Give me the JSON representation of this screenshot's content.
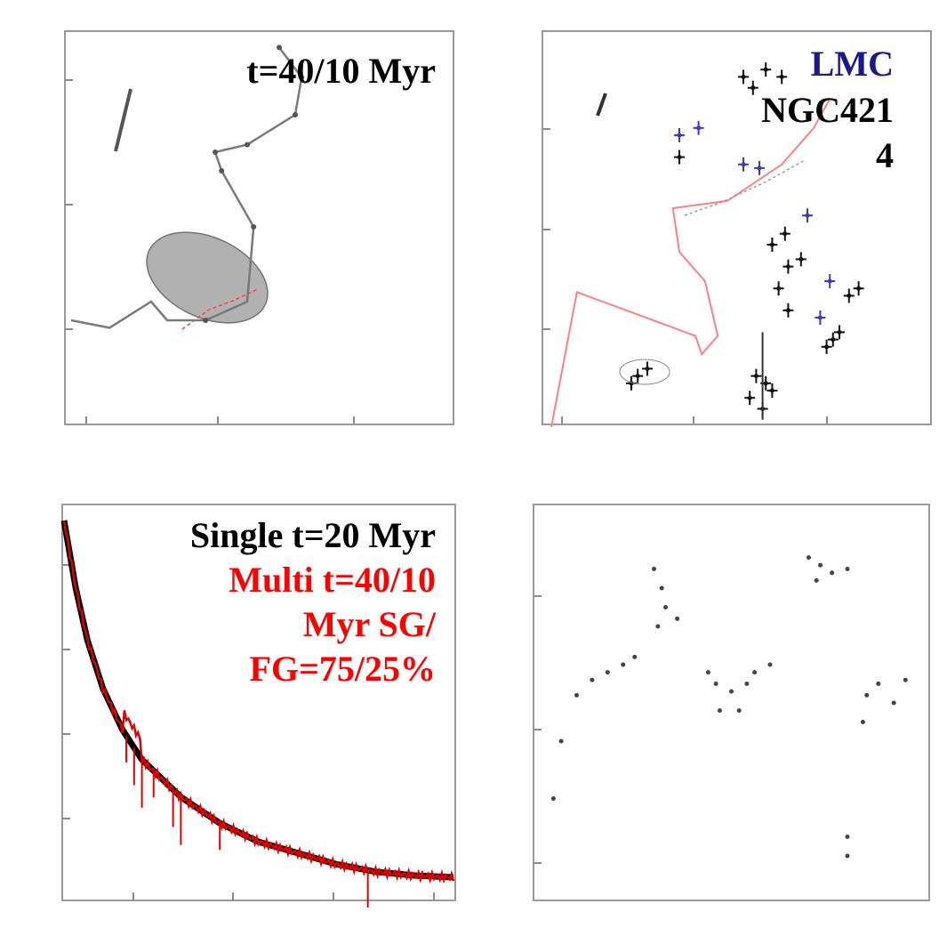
{
  "panels": {
    "top_left": {
      "annotation": "t=40/10 Myr",
      "annotation_color": "#000000"
    },
    "top_right": {
      "annotation_lines": [
        {
          "text": "LMC",
          "color": "#1a1a8c"
        },
        {
          "text": "NGC421",
          "color": "#000000"
        },
        {
          "text": "4",
          "color": "#000000"
        }
      ]
    },
    "bottom_left": {
      "annotation_lines": [
        {
          "text": "Single t=20 Myr",
          "color": "#000000"
        },
        {
          "text": "Multi t=40/10",
          "color": "#ff0000"
        },
        {
          "text": "Myr SG/",
          "color": "#ff0000"
        },
        {
          "text": "FG=75/25%",
          "color": "#ff0000"
        }
      ]
    },
    "bottom_right": {}
  },
  "colors": {
    "track": "#7a7a7a",
    "ellipse_fill": "#a9a9a9",
    "red": "#ff0000",
    "blue": "#3a3ad0",
    "spectrum_black": "#000000",
    "spectrum_red": "#e00000"
  },
  "chart_data": [
    {
      "type": "line",
      "id": "top-left-track",
      "title": "",
      "xlabel": "",
      "ylabel": "",
      "xlim": [
        0,
        1
      ],
      "ylim": [
        0,
        1
      ],
      "series": [
        {
          "x": [
            0.0,
            0.12,
            0.25,
            0.3,
            0.42,
            0.55,
            0.57,
            0.47,
            0.45,
            0.55,
            0.7,
            0.72,
            0.65
          ],
          "y": [
            0.25,
            0.23,
            0.3,
            0.25,
            0.25,
            0.3,
            0.5,
            0.65,
            0.7,
            0.72,
            0.8,
            0.9,
            0.98
          ]
        }
      ]
    },
    {
      "type": "line",
      "id": "top-right-track",
      "title": "",
      "xlabel": "",
      "ylabel": "",
      "xlim": [
        0,
        1
      ],
      "ylim": [
        0,
        1
      ],
      "series": [
        {
          "x": [
            0.0,
            0.08,
            0.45,
            0.47,
            0.52,
            0.48,
            0.4,
            0.38,
            0.55,
            0.72,
            0.82,
            0.87
          ],
          "y": [
            0.0,
            0.37,
            0.25,
            0.2,
            0.25,
            0.4,
            0.48,
            0.6,
            0.62,
            0.72,
            0.82,
            0.9
          ]
        }
      ]
    },
    {
      "type": "line",
      "id": "bottom-left-spectrum",
      "title": "",
      "xlabel": "",
      "ylabel": "",
      "xlim": [
        0,
        1
      ],
      "ylim": [
        0,
        1
      ],
      "series": [
        {
          "x": [
            0.0,
            0.03,
            0.06,
            0.1,
            0.15,
            0.2,
            0.3,
            0.4,
            0.5,
            0.6,
            0.7,
            0.8,
            0.9,
            1.0
          ],
          "y": [
            1.0,
            0.82,
            0.68,
            0.55,
            0.44,
            0.36,
            0.26,
            0.19,
            0.14,
            0.11,
            0.08,
            0.06,
            0.05,
            0.045
          ]
        }
      ]
    },
    {
      "type": "scatter",
      "id": "bottom-right-scatter",
      "title": "",
      "xlabel": "",
      "ylabel": "",
      "xlim": [
        0,
        1
      ],
      "ylim": [
        0,
        1
      ]
    }
  ]
}
